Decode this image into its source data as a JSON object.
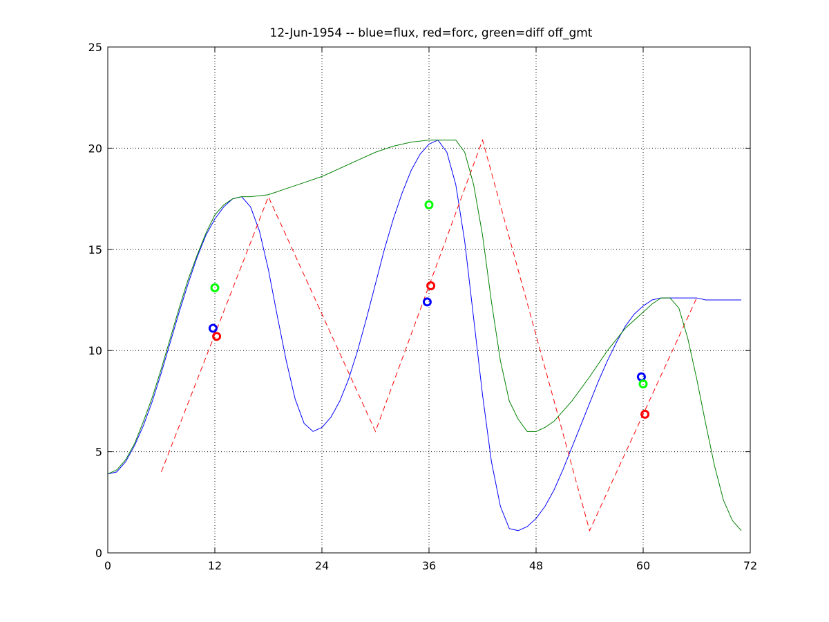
{
  "chart_data": {
    "type": "line",
    "title": "12-Jun-1954 -- blue=flux, red=forc, green=diff off_gmt",
    "xlabel": "",
    "ylabel": "",
    "xlim": [
      0,
      72
    ],
    "ylim": [
      0,
      25
    ],
    "xticks": [
      0,
      12,
      24,
      36,
      48,
      60,
      72
    ],
    "yticks": [
      0,
      5,
      10,
      15,
      20,
      25
    ],
    "grid": true,
    "grid_style": "dotted",
    "series": [
      {
        "color": "#0000ff",
        "style": "solid",
        "x": [
          0,
          1,
          2,
          3,
          4,
          5,
          6,
          7,
          8,
          9,
          10,
          11,
          12,
          13,
          14,
          15,
          16,
          17,
          18,
          19,
          20,
          21,
          22,
          23,
          24,
          25,
          26,
          27,
          28,
          29,
          30,
          31,
          32,
          33,
          34,
          35,
          36,
          37,
          38,
          39,
          40,
          41,
          42,
          43,
          44,
          45,
          46,
          47,
          48,
          49,
          50,
          51,
          52,
          53,
          54,
          55,
          56,
          57,
          58,
          59,
          60,
          61,
          62,
          63,
          64,
          65,
          66,
          67,
          68,
          69,
          70,
          71
        ],
        "y": [
          3.9,
          4.0,
          4.5,
          5.3,
          6.3,
          7.5,
          8.9,
          10.4,
          11.9,
          13.3,
          14.6,
          15.7,
          16.5,
          17.1,
          17.5,
          17.6,
          17.1,
          15.9,
          14.0,
          11.7,
          9.5,
          7.6,
          6.4,
          6.0,
          6.2,
          6.7,
          7.5,
          8.6,
          10.0,
          11.6,
          13.3,
          15.0,
          16.5,
          17.8,
          18.9,
          19.7,
          20.2,
          20.4,
          19.8,
          18.2,
          15.4,
          11.6,
          7.8,
          4.5,
          2.3,
          1.2,
          1.1,
          1.3,
          1.7,
          2.3,
          3.1,
          4.1,
          5.2,
          6.3,
          7.4,
          8.5,
          9.5,
          10.4,
          11.2,
          11.8,
          12.2,
          12.5,
          12.6,
          12.6,
          12.6,
          12.6,
          12.6,
          12.5,
          12.5,
          12.5,
          12.5,
          12.5
        ]
      },
      {
        "color": "#ff0000",
        "style": "dashed",
        "x": [
          6,
          18,
          30,
          42,
          54,
          66
        ],
        "y": [
          4.0,
          17.6,
          6.0,
          20.4,
          1.1,
          12.6
        ]
      },
      {
        "color": "#008000",
        "style": "solid",
        "x": [
          0,
          1,
          2,
          3,
          4,
          5,
          6,
          7,
          8,
          9,
          10,
          11,
          12,
          13,
          14,
          15,
          16,
          18,
          20,
          22,
          24,
          26,
          28,
          30,
          32,
          34,
          36,
          38,
          39,
          40,
          41,
          42,
          43,
          44,
          45,
          46,
          47,
          48,
          49,
          50,
          52,
          54,
          56,
          58,
          60,
          61,
          62,
          63,
          64,
          65,
          66,
          67,
          68,
          69,
          70,
          71
        ],
        "y": [
          3.9,
          4.1,
          4.6,
          5.4,
          6.5,
          7.7,
          9.1,
          10.6,
          12.1,
          13.5,
          14.7,
          15.8,
          16.7,
          17.2,
          17.5,
          17.6,
          17.6,
          17.7,
          18.0,
          18.3,
          18.6,
          19.0,
          19.4,
          19.8,
          20.1,
          20.3,
          20.4,
          20.4,
          20.4,
          19.8,
          18.2,
          15.7,
          12.4,
          9.5,
          7.5,
          6.6,
          6.0,
          6.0,
          6.2,
          6.5,
          7.5,
          8.7,
          10.0,
          11.1,
          11.9,
          12.3,
          12.6,
          12.6,
          12.1,
          10.6,
          8.6,
          6.4,
          4.3,
          2.6,
          1.6,
          1.1
        ]
      }
    ],
    "markers": [
      {
        "x": 11.8,
        "y": 11.1,
        "color": "#0000ff"
      },
      {
        "x": 12.2,
        "y": 10.7,
        "color": "#ff0000"
      },
      {
        "x": 12.0,
        "y": 13.1,
        "color": "#00ff00"
      },
      {
        "x": 35.8,
        "y": 12.4,
        "color": "#0000ff"
      },
      {
        "x": 36.2,
        "y": 13.2,
        "color": "#ff0000"
      },
      {
        "x": 36.0,
        "y": 17.2,
        "color": "#00ff00"
      },
      {
        "x": 59.8,
        "y": 8.7,
        "color": "#0000ff"
      },
      {
        "x": 60.2,
        "y": 6.85,
        "color": "#ff0000"
      },
      {
        "x": 60.0,
        "y": 8.35,
        "color": "#00ff00"
      }
    ]
  }
}
